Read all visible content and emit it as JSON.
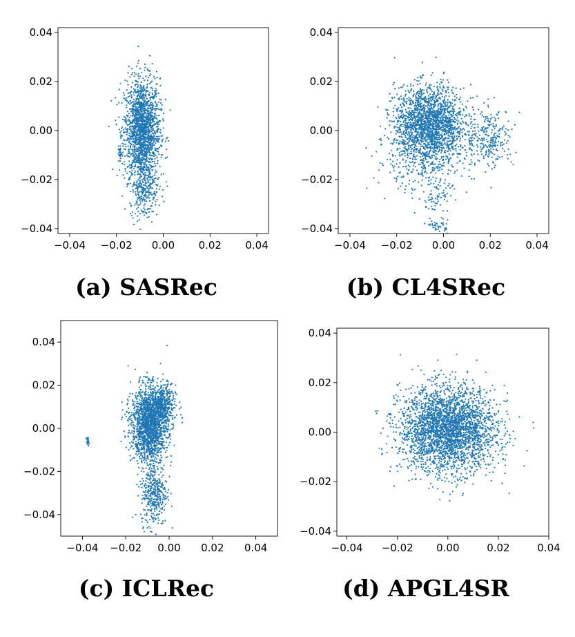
{
  "chart_data": [
    {
      "type": "scatter",
      "caption": "(a) SASRec",
      "xlim": [
        -0.045,
        0.045
      ],
      "ylim": [
        -0.042,
        0.042
      ],
      "xticks": [
        -0.04,
        -0.02,
        0.0,
        0.02,
        0.04
      ],
      "xtick_labels": [
        "−0.04",
        "−0.02",
        "0.00",
        "0.02",
        "0.04"
      ],
      "yticks": [
        -0.04,
        -0.02,
        0.0,
        0.02,
        0.04
      ],
      "ytick_labels": [
        "−0.04",
        "−0.02",
        "0.00",
        "0.02",
        "0.04"
      ],
      "point_color": "#1f77b4",
      "clusters": [
        {
          "cx": -0.009,
          "cy": 0.0,
          "sx": 0.0038,
          "sy": 0.0105,
          "n": 1800
        },
        {
          "cx": -0.008,
          "cy": -0.024,
          "sx": 0.003,
          "sy": 0.006,
          "n": 250
        },
        {
          "cx": -0.0185,
          "cy": -0.009,
          "sx": 0.0004,
          "sy": 0.0013,
          "n": 25
        }
      ]
    },
    {
      "type": "scatter",
      "caption": "(b) CL4SRec",
      "xlim": [
        -0.045,
        0.045
      ],
      "ylim": [
        -0.042,
        0.042
      ],
      "xticks": [
        -0.04,
        -0.02,
        0.0,
        0.02,
        0.04
      ],
      "xtick_labels": [
        "−0.04",
        "−0.02",
        "0.00",
        "0.02",
        "0.04"
      ],
      "yticks": [
        -0.04,
        -0.02,
        0.0,
        0.02,
        0.04
      ],
      "ytick_labels": [
        "−0.04",
        "−0.02",
        "0.00",
        "0.02",
        "0.04"
      ],
      "point_color": "#1f77b4",
      "clusters": [
        {
          "cx": -0.006,
          "cy": 0.003,
          "sx": 0.0075,
          "sy": 0.0075,
          "n": 1900
        },
        {
          "cx": -0.009,
          "cy": -0.012,
          "sx": 0.01,
          "sy": 0.0065,
          "n": 350
        },
        {
          "cx": 0.02,
          "cy": -0.003,
          "sx": 0.005,
          "sy": 0.006,
          "n": 260
        },
        {
          "cx": -0.002,
          "cy": -0.039,
          "sx": 0.002,
          "sy": 0.0012,
          "n": 40
        },
        {
          "cx": -0.003,
          "cy": -0.028,
          "sx": 0.003,
          "sy": 0.004,
          "n": 60
        }
      ]
    },
    {
      "type": "scatter",
      "caption": "(c) ICLRec",
      "xlim": [
        -0.05,
        0.05
      ],
      "ylim": [
        -0.05,
        0.05
      ],
      "xticks": [
        -0.04,
        -0.02,
        0.0,
        0.02,
        0.04
      ],
      "xtick_labels": [
        "−0.04",
        "−0.02",
        "0.00",
        "0.02",
        "0.04"
      ],
      "yticks": [
        -0.04,
        -0.02,
        0.0,
        0.02,
        0.04
      ],
      "ytick_labels": [
        "−0.04",
        "−0.02",
        "0.00",
        "0.02",
        "0.04"
      ],
      "point_color": "#1f77b4",
      "clusters": [
        {
          "cx": -0.009,
          "cy": 0.002,
          "sx": 0.0042,
          "sy": 0.0085,
          "n": 1800
        },
        {
          "cx": -0.003,
          "cy": 0.011,
          "sx": 0.003,
          "sy": 0.0045,
          "n": 350
        },
        {
          "cx": -0.007,
          "cy": -0.03,
          "sx": 0.003,
          "sy": 0.0075,
          "n": 380
        },
        {
          "cx": -0.0375,
          "cy": -0.006,
          "sx": 0.0003,
          "sy": 0.0009,
          "n": 25
        }
      ]
    },
    {
      "type": "scatter",
      "caption": "(d) APGL4SR",
      "xlim": [
        -0.044,
        0.04
      ],
      "ylim": [
        -0.042,
        0.042
      ],
      "xticks": [
        -0.04,
        -0.02,
        0.0,
        0.02,
        0.04
      ],
      "xtick_labels": [
        "−0.04",
        "−0.02",
        "0.00",
        "0.02",
        "0.04"
      ],
      "yticks": [
        -0.04,
        -0.02,
        0.0,
        0.02,
        0.04
      ],
      "ytick_labels": [
        "−0.04",
        "−0.02",
        "0.00",
        "0.02",
        "0.04"
      ],
      "point_color": "#1f77b4",
      "clusters": [
        {
          "cx": 0.0,
          "cy": 0.001,
          "sx": 0.0095,
          "sy": 0.0085,
          "n": 3000
        }
      ]
    }
  ]
}
